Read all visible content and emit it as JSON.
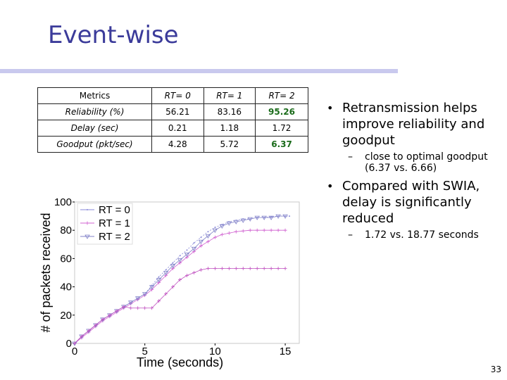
{
  "title": "Event-wise",
  "table": {
    "header": [
      "Metrics",
      "RT= 0",
      "RT= 1",
      "RT= 2"
    ],
    "rows": [
      [
        "Reliability (%)",
        "56.21",
        "83.16",
        "95.26"
      ],
      [
        "Delay (sec)",
        "0.21",
        "1.18",
        "1.72"
      ],
      [
        "Goodput (pkt/sec)",
        "4.28",
        "5.72",
        "6.37"
      ]
    ]
  },
  "bullets": {
    "b1": "Retransmission helps improve reliability and goodput",
    "b1_sub": "close to optimal goodput (6.37 vs. 6.66)",
    "b2": "Compared with SWIA, delay is significantly reduced",
    "b2_sub": "1.72 vs. 18.77 seconds"
  },
  "page_number": "33",
  "chart_data": {
    "type": "line",
    "xlabel": "Time (seconds)",
    "ylabel": "# of packets received",
    "xlim": [
      0,
      16
    ],
    "ylim": [
      0,
      100
    ],
    "xticks": [
      0,
      5,
      10,
      15
    ],
    "yticks": [
      0,
      20,
      40,
      60,
      80,
      100
    ],
    "legend_position": "top-left",
    "series": [
      {
        "name": "RT = 0",
        "color": "#8a8ad8",
        "marker": "dot",
        "x": [
          0,
          0.5,
          1,
          1.5,
          2,
          2.5,
          3,
          3.5,
          4,
          4.5,
          5,
          5.5,
          6,
          6.5,
          7,
          7.5,
          8,
          8.5,
          9,
          9.5,
          10,
          10.5,
          11,
          11.5,
          12,
          12.5,
          13,
          13.5,
          14,
          14.5,
          15,
          15.3
        ],
        "y": [
          0,
          5,
          9,
          13,
          17,
          20,
          23,
          26,
          29,
          32,
          35,
          41,
          47,
          52,
          57,
          62,
          66,
          71,
          75,
          79,
          82,
          84,
          86,
          87,
          88,
          88,
          89,
          89,
          89.5,
          90,
          90,
          90
        ]
      },
      {
        "name": "RT = 1",
        "color": "#d060d0",
        "marker": "plus",
        "x": [
          0,
          0.5,
          1,
          1.5,
          2,
          2.5,
          3,
          3.5,
          4,
          4.5,
          5,
          5.5,
          6,
          6.5,
          7,
          7.5,
          8,
          8.5,
          9,
          9.5,
          10,
          10.5,
          11,
          11.5,
          12,
          12.5,
          13,
          13.5,
          14,
          14.5,
          15
        ],
        "y": [
          0,
          4,
          8,
          12,
          16,
          19,
          22,
          25,
          28,
          31,
          34,
          38,
          43,
          48,
          53,
          57,
          61,
          65,
          69,
          72,
          75,
          77,
          78,
          79,
          79.5,
          80,
          80,
          80,
          80,
          80,
          80
        ]
      },
      {
        "name": "RT = 2",
        "color": "#8080c8",
        "marker": "triangle",
        "x": [
          0,
          0.5,
          1,
          1.5,
          2,
          2.5,
          3,
          3.5,
          4,
          4.5,
          5,
          5.5,
          6,
          6.5,
          7,
          7.5,
          8,
          8.5,
          9,
          9.5,
          10,
          10.5,
          11,
          11.5,
          12,
          12.5,
          13,
          13.5,
          14,
          14.5,
          15
        ],
        "y": [
          0,
          5,
          9,
          13,
          17,
          20,
          23,
          26,
          29,
          32,
          35,
          40,
          45,
          50,
          55,
          59,
          63,
          67,
          72,
          76,
          80,
          83,
          85,
          86,
          87,
          88,
          89,
          89,
          89,
          90,
          90
        ]
      },
      {
        "name": "",
        "color": "#c050c0",
        "marker": "plus",
        "x": [
          0,
          0.5,
          1,
          1.5,
          2,
          2.5,
          3,
          3.5,
          4,
          4.5,
          5,
          5.5,
          6,
          6.5,
          7,
          7.5,
          8,
          8.5,
          9,
          9.5,
          10,
          10.5,
          11,
          11.5,
          12,
          12.5,
          13,
          13.5,
          14,
          14.5,
          15
        ],
        "y": [
          0,
          5,
          9,
          13,
          17,
          20,
          23,
          26,
          25,
          25,
          25,
          25,
          30,
          35,
          40,
          45,
          48,
          50,
          52,
          53,
          53,
          53,
          53,
          53,
          53,
          53,
          53,
          53,
          53,
          53,
          53
        ]
      }
    ]
  }
}
